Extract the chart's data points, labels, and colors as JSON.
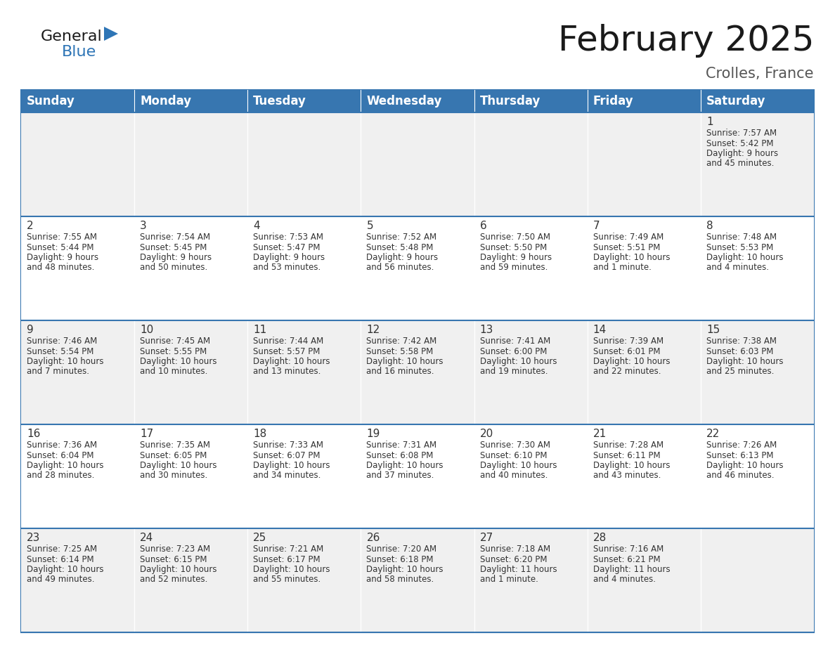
{
  "title": "February 2025",
  "subtitle": "Crolles, France",
  "header_color": "#3776B0",
  "header_text_color": "#FFFFFF",
  "cell_bg_odd": "#F0F0F0",
  "cell_bg_even": "#FFFFFF",
  "border_color": "#3776B0",
  "row_sep_color": "#3776B0",
  "text_color": "#333333",
  "days_of_week": [
    "Sunday",
    "Monday",
    "Tuesday",
    "Wednesday",
    "Thursday",
    "Friday",
    "Saturday"
  ],
  "weeks": [
    [
      {
        "day": "",
        "info": ""
      },
      {
        "day": "",
        "info": ""
      },
      {
        "day": "",
        "info": ""
      },
      {
        "day": "",
        "info": ""
      },
      {
        "day": "",
        "info": ""
      },
      {
        "day": "",
        "info": ""
      },
      {
        "day": "1",
        "info": "Sunrise: 7:57 AM\nSunset: 5:42 PM\nDaylight: 9 hours\nand 45 minutes."
      }
    ],
    [
      {
        "day": "2",
        "info": "Sunrise: 7:55 AM\nSunset: 5:44 PM\nDaylight: 9 hours\nand 48 minutes."
      },
      {
        "day": "3",
        "info": "Sunrise: 7:54 AM\nSunset: 5:45 PM\nDaylight: 9 hours\nand 50 minutes."
      },
      {
        "day": "4",
        "info": "Sunrise: 7:53 AM\nSunset: 5:47 PM\nDaylight: 9 hours\nand 53 minutes."
      },
      {
        "day": "5",
        "info": "Sunrise: 7:52 AM\nSunset: 5:48 PM\nDaylight: 9 hours\nand 56 minutes."
      },
      {
        "day": "6",
        "info": "Sunrise: 7:50 AM\nSunset: 5:50 PM\nDaylight: 9 hours\nand 59 minutes."
      },
      {
        "day": "7",
        "info": "Sunrise: 7:49 AM\nSunset: 5:51 PM\nDaylight: 10 hours\nand 1 minute."
      },
      {
        "day": "8",
        "info": "Sunrise: 7:48 AM\nSunset: 5:53 PM\nDaylight: 10 hours\nand 4 minutes."
      }
    ],
    [
      {
        "day": "9",
        "info": "Sunrise: 7:46 AM\nSunset: 5:54 PM\nDaylight: 10 hours\nand 7 minutes."
      },
      {
        "day": "10",
        "info": "Sunrise: 7:45 AM\nSunset: 5:55 PM\nDaylight: 10 hours\nand 10 minutes."
      },
      {
        "day": "11",
        "info": "Sunrise: 7:44 AM\nSunset: 5:57 PM\nDaylight: 10 hours\nand 13 minutes."
      },
      {
        "day": "12",
        "info": "Sunrise: 7:42 AM\nSunset: 5:58 PM\nDaylight: 10 hours\nand 16 minutes."
      },
      {
        "day": "13",
        "info": "Sunrise: 7:41 AM\nSunset: 6:00 PM\nDaylight: 10 hours\nand 19 minutes."
      },
      {
        "day": "14",
        "info": "Sunrise: 7:39 AM\nSunset: 6:01 PM\nDaylight: 10 hours\nand 22 minutes."
      },
      {
        "day": "15",
        "info": "Sunrise: 7:38 AM\nSunset: 6:03 PM\nDaylight: 10 hours\nand 25 minutes."
      }
    ],
    [
      {
        "day": "16",
        "info": "Sunrise: 7:36 AM\nSunset: 6:04 PM\nDaylight: 10 hours\nand 28 minutes."
      },
      {
        "day": "17",
        "info": "Sunrise: 7:35 AM\nSunset: 6:05 PM\nDaylight: 10 hours\nand 30 minutes."
      },
      {
        "day": "18",
        "info": "Sunrise: 7:33 AM\nSunset: 6:07 PM\nDaylight: 10 hours\nand 34 minutes."
      },
      {
        "day": "19",
        "info": "Sunrise: 7:31 AM\nSunset: 6:08 PM\nDaylight: 10 hours\nand 37 minutes."
      },
      {
        "day": "20",
        "info": "Sunrise: 7:30 AM\nSunset: 6:10 PM\nDaylight: 10 hours\nand 40 minutes."
      },
      {
        "day": "21",
        "info": "Sunrise: 7:28 AM\nSunset: 6:11 PM\nDaylight: 10 hours\nand 43 minutes."
      },
      {
        "day": "22",
        "info": "Sunrise: 7:26 AM\nSunset: 6:13 PM\nDaylight: 10 hours\nand 46 minutes."
      }
    ],
    [
      {
        "day": "23",
        "info": "Sunrise: 7:25 AM\nSunset: 6:14 PM\nDaylight: 10 hours\nand 49 minutes."
      },
      {
        "day": "24",
        "info": "Sunrise: 7:23 AM\nSunset: 6:15 PM\nDaylight: 10 hours\nand 52 minutes."
      },
      {
        "day": "25",
        "info": "Sunrise: 7:21 AM\nSunset: 6:17 PM\nDaylight: 10 hours\nand 55 minutes."
      },
      {
        "day": "26",
        "info": "Sunrise: 7:20 AM\nSunset: 6:18 PM\nDaylight: 10 hours\nand 58 minutes."
      },
      {
        "day": "27",
        "info": "Sunrise: 7:18 AM\nSunset: 6:20 PM\nDaylight: 11 hours\nand 1 minute."
      },
      {
        "day": "28",
        "info": "Sunrise: 7:16 AM\nSunset: 6:21 PM\nDaylight: 11 hours\nand 4 minutes."
      },
      {
        "day": "",
        "info": ""
      }
    ]
  ],
  "logo_general_color": "#1a1a1a",
  "logo_blue_color": "#2E75B6",
  "title_fontsize": 36,
  "subtitle_fontsize": 15,
  "header_fontsize": 12,
  "day_number_fontsize": 11,
  "info_fontsize": 8.5
}
